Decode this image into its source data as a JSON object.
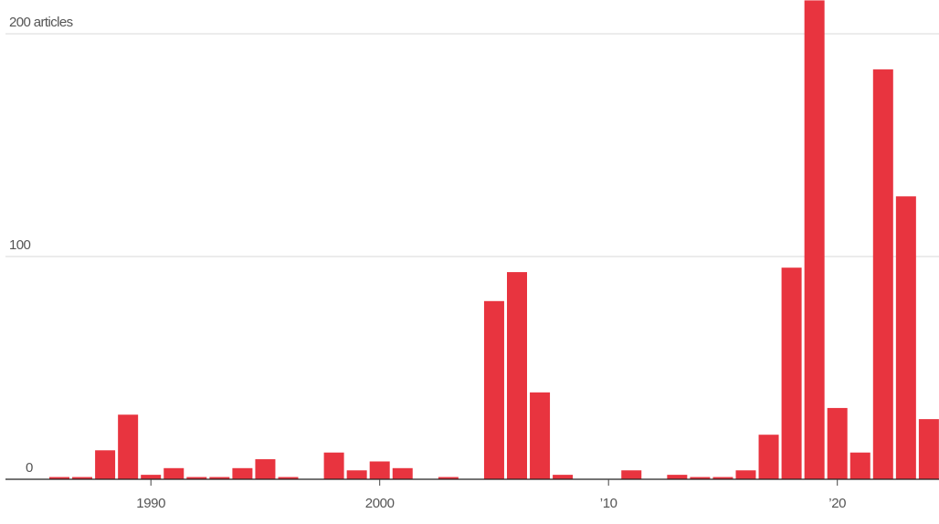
{
  "chart_data": {
    "type": "bar",
    "bar_color": "#e8343f",
    "baseline_color": "#222222",
    "grid_color": "#d9d9d9",
    "grid": true,
    "ylim": [
      0,
      200
    ],
    "y_ticks": [
      {
        "value": 0,
        "label": "0"
      },
      {
        "value": 100,
        "label": "100"
      },
      {
        "value": 200,
        "label": "200 articles"
      }
    ],
    "x_ticks": [
      {
        "year": 1990,
        "label": "1990"
      },
      {
        "year": 2000,
        "label": "2000"
      },
      {
        "year": 2010,
        "label": "’10"
      },
      {
        "year": 2020,
        "label": "’20"
      }
    ],
    "categories": [
      1986,
      1987,
      1988,
      1989,
      1990,
      1991,
      1992,
      1993,
      1994,
      1995,
      1996,
      1997,
      1998,
      1999,
      2000,
      2001,
      2002,
      2003,
      2004,
      2005,
      2006,
      2007,
      2008,
      2009,
      2010,
      2011,
      2012,
      2013,
      2014,
      2015,
      2016,
      2017,
      2018,
      2019,
      2020,
      2021,
      2022,
      2023,
      2024
    ],
    "values": [
      1,
      1,
      13,
      29,
      2,
      5,
      1,
      1,
      5,
      9,
      1,
      0,
      12,
      4,
      8,
      5,
      0,
      1,
      0,
      80,
      93,
      39,
      2,
      0,
      0,
      4,
      0,
      2,
      1,
      1,
      4,
      20,
      95,
      215,
      32,
      12,
      184,
      127,
      27
    ]
  }
}
